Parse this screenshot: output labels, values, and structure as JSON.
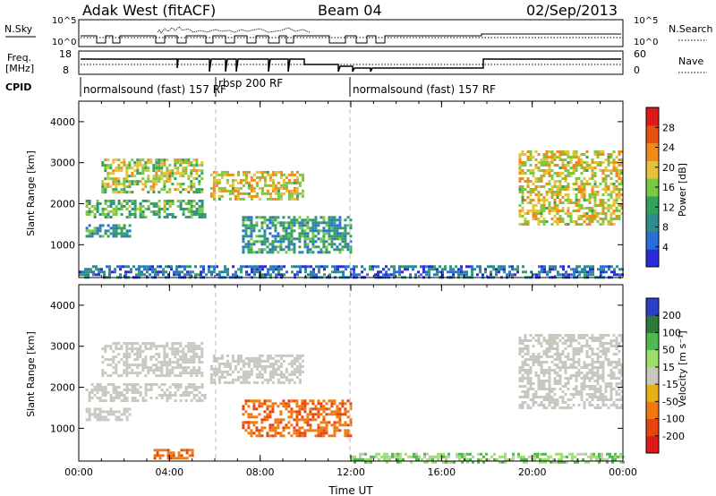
{
  "header": {
    "title": "Adak West (fitACF)",
    "beam": "Beam 04",
    "date": "02/Sep/2013"
  },
  "top_panels": {
    "nsky_label": "N.Sky",
    "nsky_ticks": [
      "10^5",
      "10^0"
    ],
    "nsearch_label": "N.Search",
    "freq_label_1": "Freq.",
    "freq_label_2": "[MHz]",
    "freq_ticks": [
      "18",
      "8"
    ],
    "nave_label": "Nave",
    "nave_ticks": [
      "60",
      "0"
    ],
    "cpid_label": "CPID",
    "cpid_segments": [
      {
        "label": "normalsound (fast) 157 RF"
      },
      {
        "label": "rbsp 200 RF"
      },
      {
        "label": "normalsound (fast) 157 RF"
      }
    ]
  },
  "colors": {
    "power_scale": [
      "#2b2bd9",
      "#2a6fd6",
      "#2e8c8c",
      "#33a35c",
      "#7ac943",
      "#e6c13a",
      "#f08a1a",
      "#e85010",
      "#dc1a1a"
    ],
    "velocity_scale": [
      "#2b3fc7",
      "#2e7a3a",
      "#4fb84f",
      "#9be06a",
      "#c8c8c0",
      "#e8b018",
      "#f07a10",
      "#e84410",
      "#dc1a1a"
    ],
    "gray_band": "#c8c8c0"
  },
  "chart_data": [
    {
      "type": "heatmap",
      "panel": "power",
      "ylabel": "Slant Range [km]",
      "y_ticks": [
        "4000",
        "3000",
        "2000",
        "1000"
      ],
      "ylim": [
        200,
        4500
      ],
      "x_tick_labels": [
        "00:00",
        "04:00",
        "08:00",
        "12:00",
        "16:00",
        "20:00",
        "00:00"
      ],
      "xlim_hours": [
        0,
        24
      ],
      "colorbar": {
        "label": "Power [dB]",
        "ticks": [
          "28",
          "24",
          "20",
          "16",
          "12",
          "8",
          "4"
        ],
        "range": [
          0,
          30
        ]
      },
      "echo_regions": [
        {
          "t0": 0.3,
          "t1": 5.6,
          "r0": 1700,
          "r1": 2100,
          "level": 12
        },
        {
          "t0": 1.0,
          "t1": 5.5,
          "r0": 2300,
          "r1": 3100,
          "level": 16
        },
        {
          "t0": 0.3,
          "t1": 2.3,
          "r0": 1200,
          "r1": 1500,
          "level": 10
        },
        {
          "t0": 5.8,
          "t1": 9.9,
          "r0": 2100,
          "r1": 2800,
          "level": 18
        },
        {
          "t0": 7.2,
          "t1": 12.0,
          "r0": 800,
          "r1": 1700,
          "level": 10
        },
        {
          "t0": 19.4,
          "t1": 24.0,
          "r0": 1500,
          "r1": 3300,
          "level": 18
        },
        {
          "t0": 0.0,
          "t1": 24.0,
          "r0": 200,
          "r1": 500,
          "level": 6
        }
      ]
    },
    {
      "type": "heatmap",
      "panel": "velocity",
      "ylabel": "Slant Range [km]",
      "y_ticks": [
        "4000",
        "3000",
        "2000",
        "1000"
      ],
      "ylim": [
        200,
        4500
      ],
      "x_tick_labels": [
        "00:00",
        "04:00",
        "08:00",
        "12:00",
        "16:00",
        "20:00",
        "00:00"
      ],
      "xlim_hours": [
        0,
        24
      ],
      "xlabel": "Time UT",
      "colorbar": {
        "label": "Velocity [m s⁻¹]",
        "ticks": [
          "200",
          "100",
          "50",
          "15",
          "-15",
          "-50",
          "-100",
          "-200"
        ],
        "range": [
          -250,
          250
        ]
      },
      "echo_regions": [
        {
          "t0": 0.3,
          "t1": 5.6,
          "r0": 1700,
          "r1": 2100,
          "velocity": 0
        },
        {
          "t0": 1.0,
          "t1": 5.5,
          "r0": 2300,
          "r1": 3100,
          "velocity": 0
        },
        {
          "t0": 0.3,
          "t1": 2.3,
          "r0": 1200,
          "r1": 1500,
          "velocity": 0
        },
        {
          "t0": 5.8,
          "t1": 9.9,
          "r0": 2100,
          "r1": 2800,
          "velocity": 0
        },
        {
          "t0": 7.2,
          "t1": 12.0,
          "r0": 800,
          "r1": 1700,
          "velocity": -70
        },
        {
          "t0": 19.4,
          "t1": 24.0,
          "r0": 1500,
          "r1": 3300,
          "velocity": 0
        },
        {
          "t0": 3.3,
          "t1": 5.0,
          "r0": 300,
          "r1": 500,
          "velocity": -70
        },
        {
          "t0": 12.0,
          "t1": 24.0,
          "r0": 200,
          "r1": 400,
          "velocity": 25
        }
      ]
    }
  ]
}
